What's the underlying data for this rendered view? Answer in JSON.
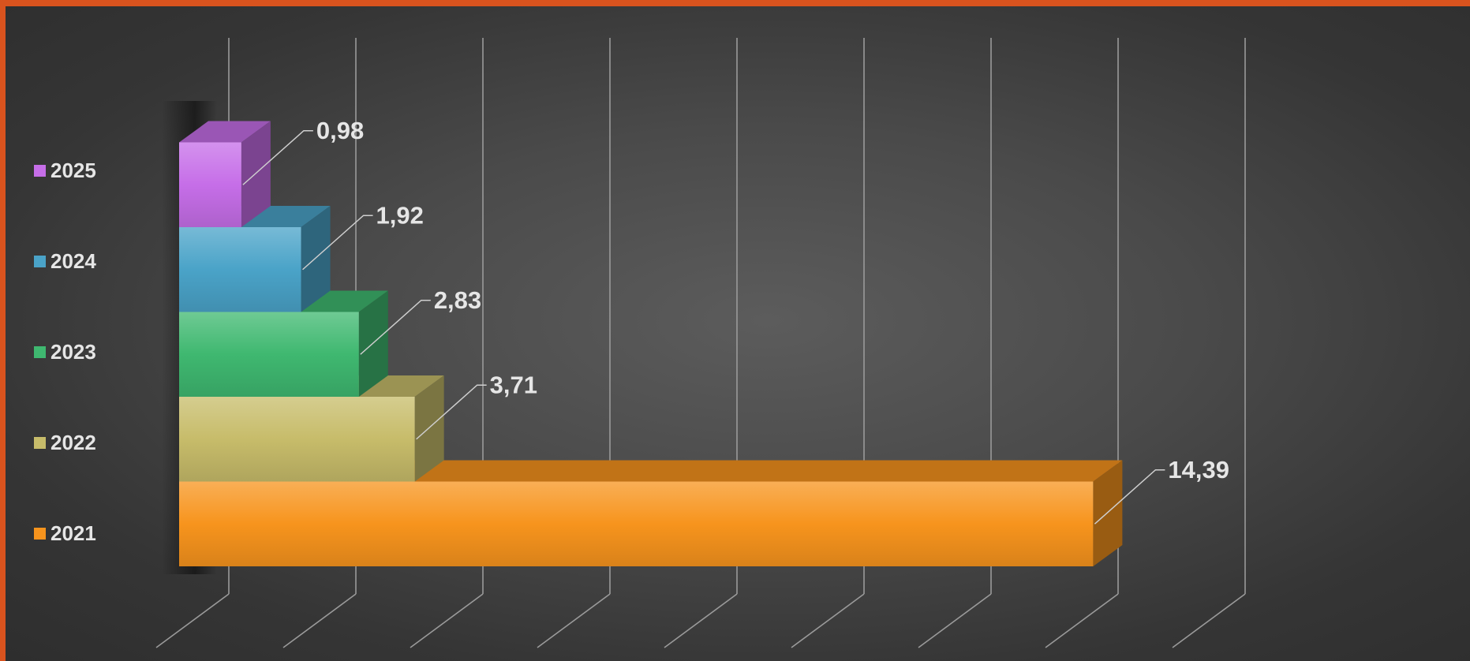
{
  "chart_data": {
    "type": "bar",
    "orientation": "horizontal",
    "style": "3d",
    "categories": [
      "2021",
      "2022",
      "2023",
      "2024",
      "2025"
    ],
    "values": [
      14.39,
      3.71,
      2.83,
      1.92,
      0.98
    ],
    "data_labels": [
      "14,39",
      "3,71",
      "2,83",
      "1,92",
      "0,98"
    ],
    "colors": [
      "#f7941d",
      "#c7bc6a",
      "#3fb870",
      "#4aa3c8",
      "#c66ee8"
    ],
    "legend": {
      "position": "left",
      "entries": [
        "2025",
        "2024",
        "2023",
        "2022",
        "2021"
      ]
    },
    "xlim": [
      0,
      16
    ],
    "grid": true,
    "title": "",
    "xlabel": "",
    "ylabel": ""
  },
  "theme": {
    "frame_accent": "#d9531e",
    "background": "#4a4a4a",
    "gridline": "#9a9a9a",
    "label_text": "#e6e6e6"
  }
}
